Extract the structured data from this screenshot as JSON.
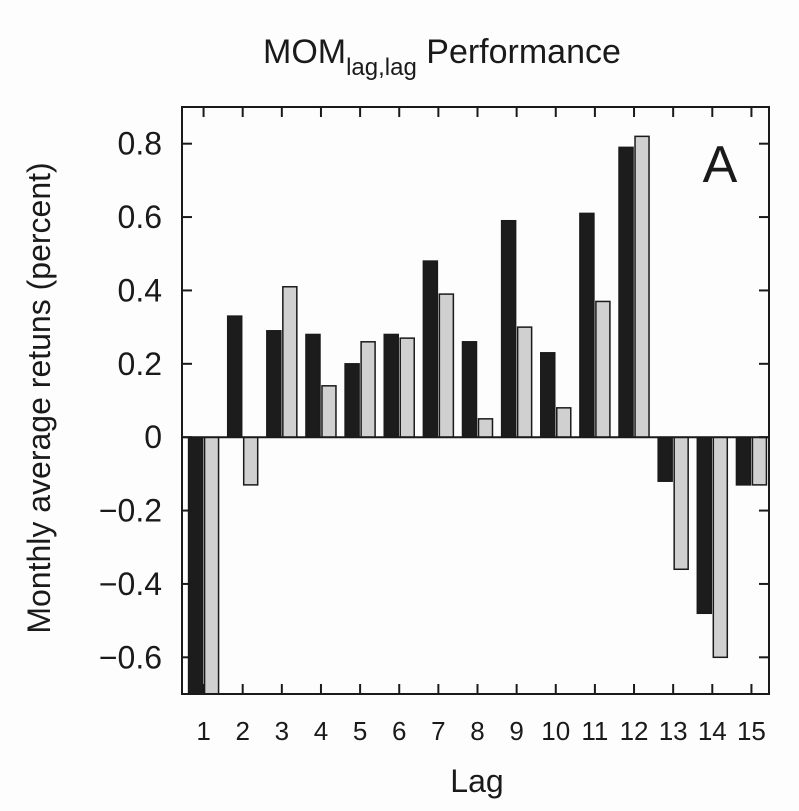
{
  "chart_data": {
    "type": "bar",
    "title": "MOM",
    "title_subscript": "lag,lag",
    "title_suffix": " Performance",
    "panel_label": "A",
    "xlabel": "Lag",
    "ylabel": "Monthly average retuns (percent)",
    "categories": [
      "1",
      "2",
      "3",
      "4",
      "5",
      "6",
      "7",
      "8",
      "9",
      "10",
      "11",
      "12",
      "13",
      "14",
      "15"
    ],
    "yticks": [
      "0.8",
      "0.6",
      "0.4",
      "0.2",
      "0",
      "−0.2",
      "−0.4",
      "−0.6"
    ],
    "ylim": [
      -0.7,
      0.9
    ],
    "grid": false,
    "series": [
      {
        "color": "#1c1c1c",
        "values": [
          -0.7,
          0.33,
          0.29,
          0.28,
          0.2,
          0.28,
          0.48,
          0.26,
          0.59,
          0.23,
          0.61,
          0.79,
          -0.12,
          -0.48,
          -0.13
        ]
      },
      {
        "color": "#d0d0d0",
        "values": [
          -0.7,
          -0.13,
          0.41,
          0.14,
          0.26,
          0.27,
          0.39,
          0.05,
          0.3,
          0.08,
          0.37,
          0.82,
          -0.36,
          -0.6,
          -0.13
        ]
      }
    ]
  }
}
